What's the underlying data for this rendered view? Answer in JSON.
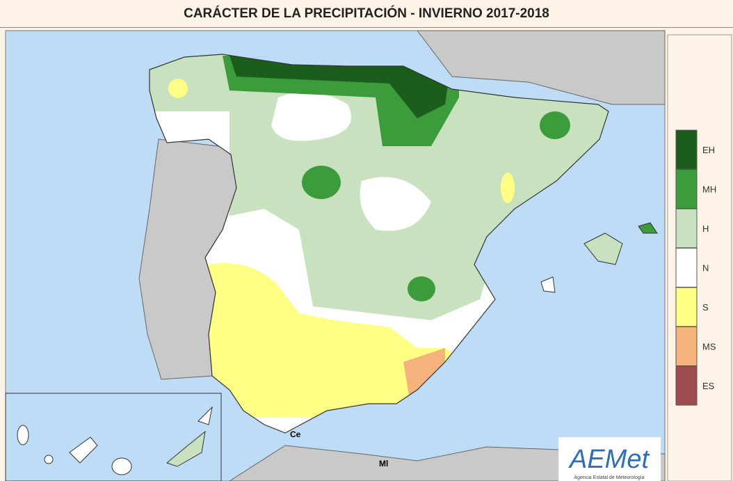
{
  "title": "CARÁCTER DE LA PRECIPITACIÓN - INVIERNO 2017-2018",
  "legend": [
    {
      "label": "EH",
      "color": "#1b5e1b"
    },
    {
      "label": "MH",
      "color": "#3c9c3c"
    },
    {
      "label": "H",
      "color": "#c8e2bf"
    },
    {
      "label": "N",
      "color": "#ffffff"
    },
    {
      "label": "S",
      "color": "#ffff85"
    },
    {
      "label": "MS",
      "color": "#f6b27c"
    },
    {
      "label": "ES",
      "color": "#9c4c4c"
    }
  ],
  "map_labels": [
    "Ce",
    "Ml"
  ],
  "logo": {
    "text": "AEMet",
    "subtitle": "Agencia Estatal de Meteorología"
  }
}
